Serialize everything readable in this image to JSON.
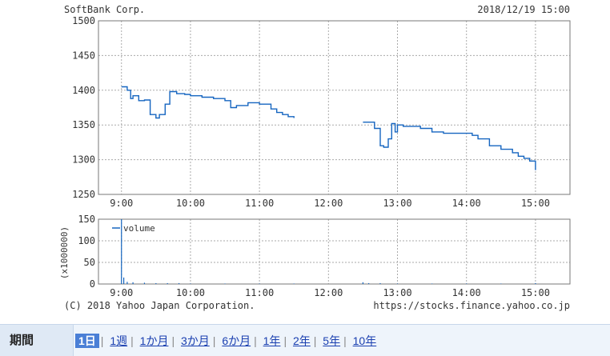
{
  "header": {
    "company": "SoftBank Corp.",
    "datetime": "2018/12/19 15:00"
  },
  "footer": {
    "copyright": "(C) 2018 Yahoo Japan Corporation.",
    "url": "https://stocks.finance.yahoo.co.jp"
  },
  "period": {
    "label": "期間",
    "options": [
      "1日",
      "1週",
      "1か月",
      "3か月",
      "6か月",
      "1年",
      "2年",
      "5年",
      "10年"
    ],
    "active": "1日"
  },
  "colors": {
    "line": "#1565c0",
    "grid": "#aaaaaa",
    "frame": "#777777"
  },
  "chart_data": [
    {
      "type": "line",
      "title": "SoftBank Corp.",
      "ylim": [
        1250,
        1500
      ],
      "yticks": [
        1250,
        1300,
        1350,
        1400,
        1450,
        1500
      ],
      "xlim": [
        "8:40",
        "15:30"
      ],
      "xticks": [
        "9:00",
        "10:00",
        "11:00",
        "12:00",
        "13:00",
        "14:00",
        "15:00"
      ],
      "grid": true,
      "series": [
        {
          "x": [
            "9:00",
            "9:05",
            "9:08",
            "9:10",
            "9:15",
            "9:20",
            "9:25",
            "9:30",
            "9:33",
            "9:38",
            "9:42",
            "9:48",
            "9:55",
            "10:00",
            "10:10",
            "10:20",
            "10:30",
            "10:35",
            "10:40",
            "10:50",
            "10:55",
            "11:00",
            "11:10",
            "11:15",
            "11:20",
            "11:25",
            "11:30"
          ],
          "y": [
            1405,
            1400,
            1388,
            1392,
            1385,
            1386,
            1365,
            1360,
            1365,
            1380,
            1398,
            1395,
            1394,
            1392,
            1390,
            1388,
            1385,
            1375,
            1378,
            1382,
            1382,
            1380,
            1373,
            1368,
            1365,
            1362,
            1360
          ]
        },
        {
          "x": [
            "12:30",
            "12:40",
            "12:45",
            "12:48",
            "12:52",
            "12:55",
            "12:58",
            "13:00",
            "13:05",
            "13:10",
            "13:20",
            "13:30",
            "13:40",
            "13:50",
            "14:00",
            "14:05",
            "14:10",
            "14:20",
            "14:30",
            "14:40",
            "14:45",
            "14:50",
            "14:55",
            "15:00"
          ],
          "y": [
            1354,
            1345,
            1320,
            1318,
            1330,
            1352,
            1340,
            1350,
            1348,
            1348,
            1345,
            1340,
            1338,
            1338,
            1338,
            1335,
            1330,
            1320,
            1315,
            1310,
            1305,
            1302,
            1298,
            1285
          ]
        }
      ]
    },
    {
      "type": "bar",
      "ylabel": "(x1000000)",
      "ylim": [
        0,
        150
      ],
      "yticks": [
        0,
        50,
        100,
        150
      ],
      "xticks": [
        "9:00",
        "10:00",
        "11:00",
        "12:00",
        "13:00",
        "14:00",
        "15:00"
      ],
      "legend": {
        "position": "top-left",
        "label": "volume"
      },
      "series": [
        {
          "name": "volume",
          "x": [
            "9:00",
            "9:02",
            "9:05",
            "9:10",
            "9:20",
            "9:30",
            "9:40",
            "9:50",
            "10:00",
            "10:30",
            "11:00",
            "11:30",
            "12:30",
            "12:35",
            "12:45",
            "13:00",
            "13:30",
            "14:00",
            "14:30",
            "15:00"
          ],
          "y": [
            150,
            15,
            5,
            4,
            3,
            2,
            2,
            2,
            1,
            1,
            1,
            1,
            4,
            2,
            2,
            1,
            1,
            1,
            1,
            2
          ]
        }
      ]
    }
  ]
}
